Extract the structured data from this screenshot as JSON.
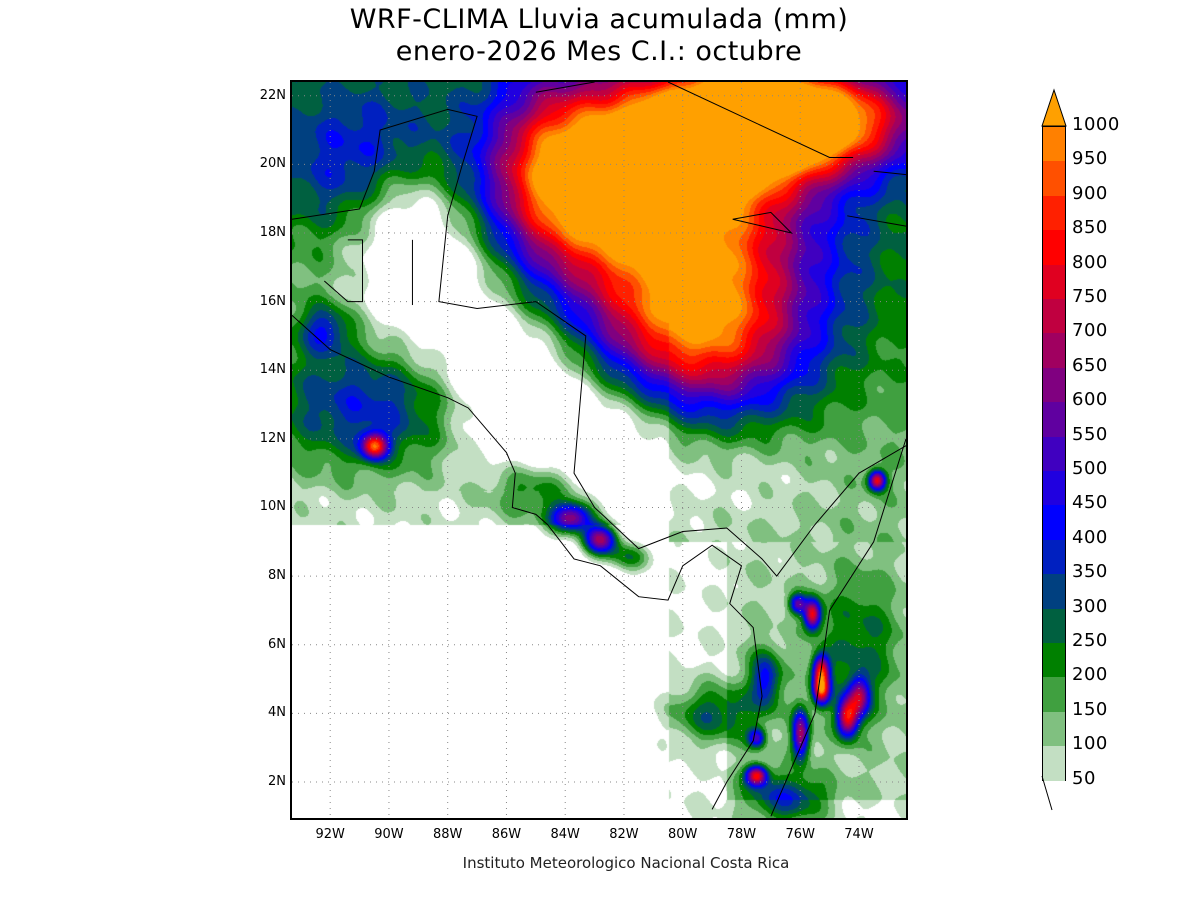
{
  "title": {
    "line1": "WRF-CLIMA Lluvia acumulada (mm)",
    "line2": "enero-2026 Mes C.I.: octubre"
  },
  "credit": "Instituto Meteorologico Nacional Costa Rica",
  "map": {
    "lon_range": [
      -93.3,
      -72.4
    ],
    "lat_range": [
      0.95,
      22.4
    ],
    "lat_labels": [
      "22N",
      "20N",
      "18N",
      "16N",
      "14N",
      "12N",
      "10N",
      "8N",
      "6N",
      "4N",
      "2N"
    ],
    "lat_values": [
      22,
      20,
      18,
      16,
      14,
      12,
      10,
      8,
      6,
      4,
      2
    ],
    "lon_labels": [
      "92W",
      "90W",
      "88W",
      "86W",
      "84W",
      "82W",
      "80W",
      "78W",
      "76W",
      "74W"
    ],
    "lon_values": [
      -92,
      -90,
      -88,
      -86,
      -84,
      -82,
      -80,
      -78,
      -76,
      -74
    ]
  },
  "colorbar": {
    "labels": [
      "50",
      "100",
      "150",
      "200",
      "250",
      "300",
      "350",
      "400",
      "450",
      "500",
      "550",
      "600",
      "650",
      "700",
      "750",
      "800",
      "850",
      "900",
      "950",
      "1000"
    ],
    "colors": [
      "#c3dfc3",
      "#80c080",
      "#40a040",
      "#008000",
      "#006040",
      "#004080",
      "#0020c0",
      "#0000ff",
      "#2000e0",
      "#4000c0",
      "#6000a0",
      "#800080",
      "#a00060",
      "#c00040",
      "#e00020",
      "#ff0000",
      "#ff2000",
      "#ff5000",
      "#ff8000"
    ],
    "over_color": "#ffa000"
  }
}
